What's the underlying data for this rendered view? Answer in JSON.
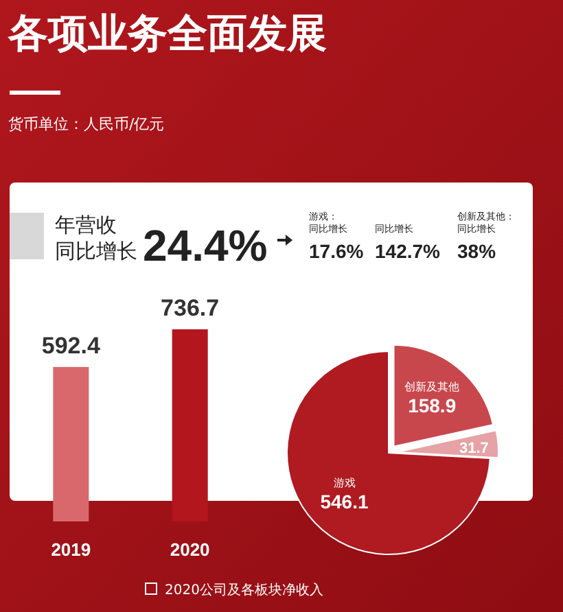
{
  "chart_data": [
    {
      "type": "bar",
      "title": "各项业务全面发展",
      "subtitle": "货币单位：人民币/亿元",
      "categories": [
        "2019",
        "2020"
      ],
      "values": [
        592.4,
        736.7
      ],
      "colors": [
        "#d9686c",
        "#b3161d"
      ],
      "data_labels": true,
      "annotations": [
        "年营收",
        "同比增长",
        "24.4%",
        "游戏：",
        "同比增长",
        "17.6%",
        "同比增长",
        "142.7%",
        "创新及其他：",
        "同比增长",
        "38%"
      ]
    },
    {
      "type": "pie",
      "categories": [
        "创新及其他",
        null,
        "游戏"
      ],
      "values": [
        158.9,
        31.7,
        546.1
      ],
      "colors": [
        "#c8474d",
        "#e6a2a6",
        "#b01a21"
      ],
      "data_labels": true,
      "annotations": [
        "2020公司及各板块净收入"
      ]
    }
  ]
}
